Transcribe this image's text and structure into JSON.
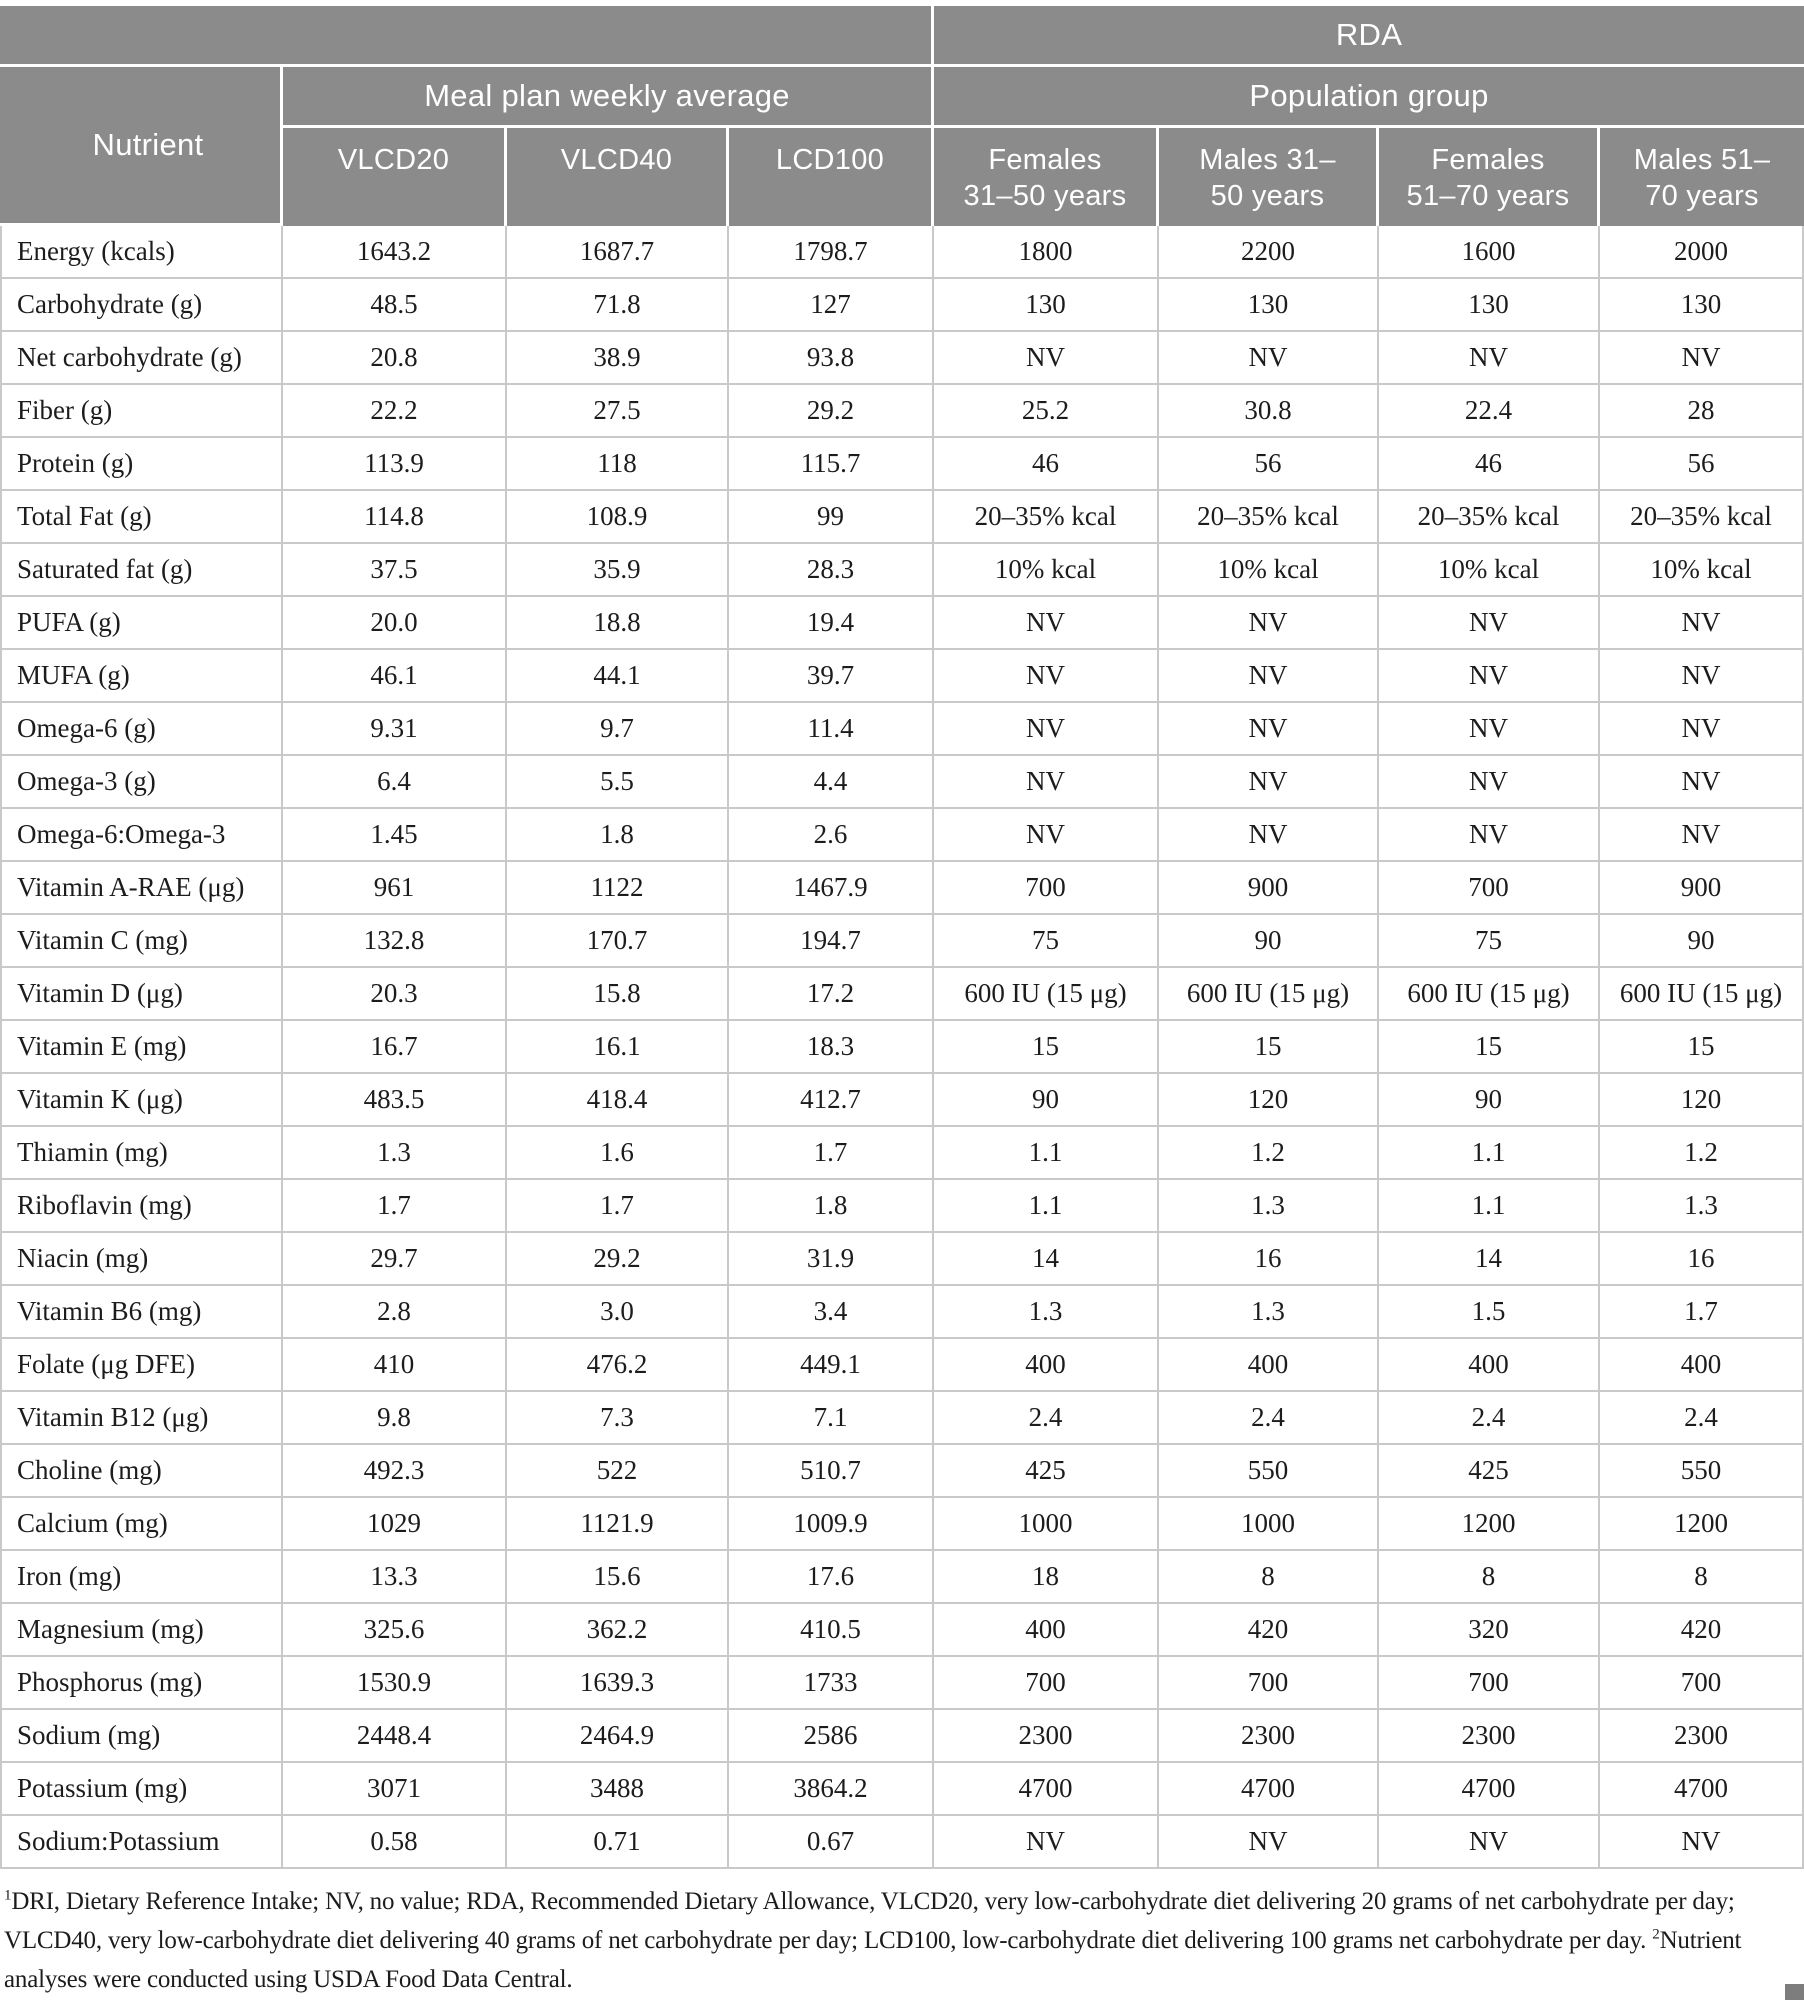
{
  "colors": {
    "header-bg": "#8b8b8b",
    "header-text": "#ffffff",
    "border": "#c9c9c9",
    "text": "#1c1c1c",
    "page-bg": "#ffffff",
    "square": "#7d7d7d"
  },
  "table": {
    "header": {
      "rda": "RDA",
      "nutrient": "Nutrient",
      "meal_plan_group": "Meal plan weekly average",
      "population_group": "Population group",
      "meal_columns": [
        "VLCD20",
        "VLCD40",
        "LCD100"
      ],
      "population_columns": [
        {
          "line1": "Females",
          "line2": "31–50 years"
        },
        {
          "line1": "Males 31–",
          "line2": "50 years"
        },
        {
          "line1": "Females",
          "line2": "51–70 years"
        },
        {
          "line1": "Males 51–",
          "line2": "70 years"
        }
      ]
    },
    "rows": [
      {
        "nutrient": "Energy (kcals)",
        "values": [
          "1643.2",
          "1687.7",
          "1798.7",
          "1800",
          "2200",
          "1600",
          "2000"
        ]
      },
      {
        "nutrient": "Carbohydrate (g)",
        "values": [
          "48.5",
          "71.8",
          "127",
          "130",
          "130",
          "130",
          "130"
        ]
      },
      {
        "nutrient": "Net carbohydrate (g)",
        "values": [
          "20.8",
          "38.9",
          "93.8",
          "NV",
          "NV",
          "NV",
          "NV"
        ]
      },
      {
        "nutrient": "Fiber (g)",
        "values": [
          "22.2",
          "27.5",
          "29.2",
          "25.2",
          "30.8",
          "22.4",
          "28"
        ]
      },
      {
        "nutrient": "Protein (g)",
        "values": [
          "113.9",
          "118",
          "115.7",
          "46",
          "56",
          "46",
          "56"
        ]
      },
      {
        "nutrient": "Total Fat (g)",
        "values": [
          "114.8",
          "108.9",
          "99",
          "20–35% kcal",
          "20–35% kcal",
          "20–35% kcal",
          "20–35% kcal"
        ]
      },
      {
        "nutrient": "Saturated fat (g)",
        "values": [
          "37.5",
          "35.9",
          "28.3",
          "10% kcal",
          "10% kcal",
          "10% kcal",
          "10% kcal"
        ]
      },
      {
        "nutrient": "PUFA (g)",
        "values": [
          "20.0",
          "18.8",
          "19.4",
          "NV",
          "NV",
          "NV",
          "NV"
        ]
      },
      {
        "nutrient": "MUFA (g)",
        "values": [
          "46.1",
          "44.1",
          "39.7",
          "NV",
          "NV",
          "NV",
          "NV"
        ]
      },
      {
        "nutrient": "Omega-6 (g)",
        "values": [
          "9.31",
          "9.7",
          "11.4",
          "NV",
          "NV",
          "NV",
          "NV"
        ]
      },
      {
        "nutrient": "Omega-3 (g)",
        "values": [
          "6.4",
          "5.5",
          "4.4",
          "NV",
          "NV",
          "NV",
          "NV"
        ]
      },
      {
        "nutrient": "Omega-6:Omega-3",
        "values": [
          "1.45",
          "1.8",
          "2.6",
          "NV",
          "NV",
          "NV",
          "NV"
        ]
      },
      {
        "nutrient": "Vitamin A-RAE (μg)",
        "values": [
          "961",
          "1122",
          "1467.9",
          "700",
          "900",
          "700",
          "900"
        ]
      },
      {
        "nutrient": "Vitamin C (mg)",
        "values": [
          "132.8",
          "170.7",
          "194.7",
          "75",
          "90",
          "75",
          "90"
        ]
      },
      {
        "nutrient": "Vitamin D (μg)",
        "values": [
          "20.3",
          "15.8",
          "17.2",
          "600 IU (15 μg)",
          "600 IU (15 μg)",
          "600 IU (15 μg)",
          "600 IU (15 μg)"
        ]
      },
      {
        "nutrient": "Vitamin E (mg)",
        "values": [
          "16.7",
          "16.1",
          "18.3",
          "15",
          "15",
          "15",
          "15"
        ]
      },
      {
        "nutrient": "Vitamin K (μg)",
        "values": [
          "483.5",
          "418.4",
          "412.7",
          "90",
          "120",
          "90",
          "120"
        ]
      },
      {
        "nutrient": "Thiamin (mg)",
        "values": [
          "1.3",
          "1.6",
          "1.7",
          "1.1",
          "1.2",
          "1.1",
          "1.2"
        ]
      },
      {
        "nutrient": "Riboflavin (mg)",
        "values": [
          "1.7",
          "1.7",
          "1.8",
          "1.1",
          "1.3",
          "1.1",
          "1.3"
        ]
      },
      {
        "nutrient": "Niacin (mg)",
        "values": [
          "29.7",
          "29.2",
          "31.9",
          "14",
          "16",
          "14",
          "16"
        ]
      },
      {
        "nutrient": "Vitamin B6 (mg)",
        "values": [
          "2.8",
          "3.0",
          "3.4",
          "1.3",
          "1.3",
          "1.5",
          "1.7"
        ]
      },
      {
        "nutrient": "Folate (μg DFE)",
        "values": [
          "410",
          "476.2",
          "449.1",
          "400",
          "400",
          "400",
          "400"
        ]
      },
      {
        "nutrient": "Vitamin B12 (μg)",
        "values": [
          "9.8",
          "7.3",
          "7.1",
          "2.4",
          "2.4",
          "2.4",
          "2.4"
        ]
      },
      {
        "nutrient": "Choline (mg)",
        "values": [
          "492.3",
          "522",
          "510.7",
          "425",
          "550",
          "425",
          "550"
        ]
      },
      {
        "nutrient": "Calcium (mg)",
        "values": [
          "1029",
          "1121.9",
          "1009.9",
          "1000",
          "1000",
          "1200",
          "1200"
        ]
      },
      {
        "nutrient": "Iron (mg)",
        "values": [
          "13.3",
          "15.6",
          "17.6",
          "18",
          "8",
          "8",
          "8"
        ]
      },
      {
        "nutrient": "Magnesium (mg)",
        "values": [
          "325.6",
          "362.2",
          "410.5",
          "400",
          "420",
          "320",
          "420"
        ]
      },
      {
        "nutrient": "Phosphorus (mg)",
        "values": [
          "1530.9",
          "1639.3",
          "1733",
          "700",
          "700",
          "700",
          "700"
        ]
      },
      {
        "nutrient": "Sodium (mg)",
        "values": [
          "2448.4",
          "2464.9",
          "2586",
          "2300",
          "2300",
          "2300",
          "2300"
        ]
      },
      {
        "nutrient": "Potassium (mg)",
        "values": [
          "3071",
          "3488",
          "3864.2",
          "4700",
          "4700",
          "4700",
          "4700"
        ]
      },
      {
        "nutrient": "Sodium:Potassium",
        "values": [
          "0.58",
          "0.71",
          "0.67",
          "NV",
          "NV",
          "NV",
          "NV"
        ]
      }
    ]
  },
  "footnotes": [
    {
      "sup": "1",
      "text": "DRI, Dietary Reference Intake; NV, no value; RDA, Recommended Dietary Allowance, VLCD20, very low-carbohydrate diet delivering 20 grams of net carbohydrate per day; VLCD40, very low-carbohydrate diet delivering 40 grams of net carbohydrate per day; LCD100, low-carbohydrate diet delivering 100 grams net carbohydrate per day."
    },
    {
      "sup": "2",
      "text": "Nutrient analyses were conducted using USDA Food Data Central."
    }
  ]
}
